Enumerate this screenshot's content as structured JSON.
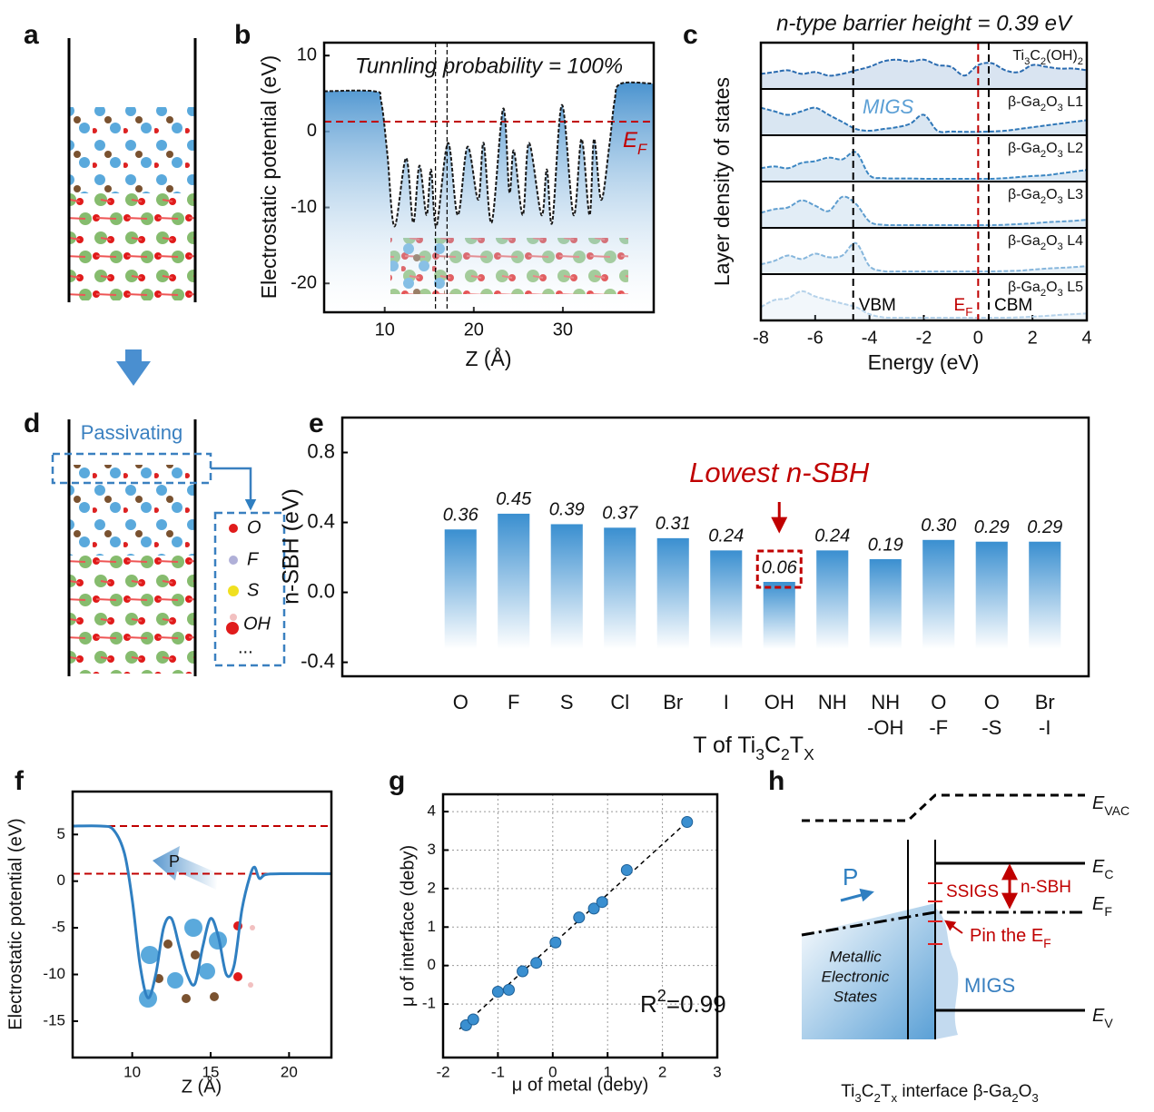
{
  "panel_labels": [
    "a",
    "b",
    "c",
    "d",
    "e",
    "f",
    "g",
    "h"
  ],
  "panel_d": {
    "passivating": "Passivating",
    "legend": [
      "O",
      "F",
      "S",
      "OH",
      "..."
    ]
  },
  "panel_h": {
    "e_vac": [
      "E",
      "VAC"
    ],
    "e_c": [
      "E",
      "C"
    ],
    "e_f": [
      "E",
      "F"
    ],
    "e_v": [
      "E",
      "V"
    ],
    "p": "P",
    "ssigs": "SSIGS",
    "nsbh": "n-SBH",
    "pin": [
      "Pin the E",
      "F"
    ],
    "metallic": [
      "Metallic",
      "Electronic",
      "States"
    ],
    "migs": "MIGS",
    "caption": [
      "Ti",
      "3",
      "C",
      "2",
      "T",
      "x",
      " interface β-Ga",
      "2",
      "O",
      "3"
    ]
  },
  "chart_data": [
    {
      "type": "line",
      "annotation": "Tunnling probability = 100%",
      "xlabel": "Z (Å)",
      "ylabel": "Electrostatic potential (eV)",
      "x": [
        3.2,
        8.8,
        9.6,
        10.3,
        11.1,
        12.4,
        13.2,
        13.9,
        14.7,
        15.2,
        15.8,
        17.1,
        18.2,
        19.3,
        20.5,
        21.1,
        22.0,
        23.3,
        24.0,
        24.5,
        25.5,
        26.2,
        27.6,
        28.2,
        28.8,
        29.9,
        31.2,
        32.1,
        33.0,
        33.5,
        34.3,
        35.2,
        35.8,
        36.5,
        40.2
      ],
      "values": [
        5.3,
        5.3,
        4,
        -3,
        -12.5,
        -3.5,
        -12,
        -4.5,
        -11,
        -5,
        -12.5,
        -1.5,
        -11,
        -2,
        -9,
        -1.5,
        -12,
        3,
        -8,
        -2.5,
        -11,
        -1.5,
        -11,
        -5,
        -12,
        3.5,
        -11,
        -1,
        -11,
        -1,
        -9,
        -2,
        4,
        6.3,
        6.3
      ],
      "color": "#1a1a1a",
      "line_style": "dashed",
      "fill_area": true,
      "hlines": [
        {
          "value": 1.3,
          "color": "#c00000",
          "label": [
            "E",
            "F"
          ]
        }
      ],
      "vlines": [
        15.7,
        17.0
      ],
      "xlim": [
        3.2,
        40.2
      ],
      "ylim": [
        -23.8,
        11.7
      ],
      "xticks": [
        10,
        20,
        30
      ],
      "yticks": [
        -20,
        -10,
        0,
        10
      ]
    },
    {
      "type": "dos",
      "title": "n-type barrier height = 0.39 eV",
      "annotation": "MIGS",
      "xlabel": "Energy (eV)",
      "ylabel": "Layer density of states",
      "x": [
        -8,
        -7.5,
        -7,
        -6.5,
        -6,
        -5.5,
        -5,
        -4.5,
        -4,
        -3.5,
        -3,
        -2.5,
        -2,
        -1.5,
        -1,
        -0.5,
        0,
        0.5,
        1,
        1.5,
        2,
        2.5,
        3,
        3.5,
        4
      ],
      "series": [
        {
          "name": [
            "Ti",
            "3",
            "C",
            "2",
            "(OH)",
            "2"
          ],
          "color": "#2a6bb0",
          "values": [
            0.35,
            0.4,
            0.45,
            0.35,
            0.4,
            0.3,
            0.35,
            0.45,
            0.55,
            0.7,
            0.75,
            0.7,
            0.75,
            0.6,
            0.55,
            0.3,
            0.6,
            0.65,
            0.45,
            0.4,
            0.6,
            0.55,
            0.5,
            0.5,
            0.45
          ]
        },
        {
          "name": [
            "β-Ga",
            "2",
            "O",
            "3",
            " L1"
          ],
          "color": "#2f77b8",
          "values": [
            0.7,
            0.6,
            0.5,
            0.6,
            0.7,
            0.5,
            0.3,
            0.1,
            0.05,
            0.1,
            0.15,
            0.25,
            0.5,
            0.05,
            0.03,
            0.02,
            0.02,
            0.03,
            0.05,
            0.1,
            0.15,
            0.2,
            0.25,
            0.3,
            0.35
          ]
        },
        {
          "name": [
            "β-Ga",
            "2",
            "O",
            "3",
            " L2"
          ],
          "color": "#3b86c2",
          "values": [
            0.3,
            0.35,
            0.3,
            0.45,
            0.5,
            0.6,
            0.55,
            0.75,
            0.1,
            0.02,
            0.01,
            0.01,
            0,
            0,
            0,
            0,
            0,
            0,
            0.02,
            0.05,
            0.08,
            0.1,
            0.15,
            0.2,
            0.25
          ]
        },
        {
          "name": [
            "β-Ga",
            "2",
            "O",
            "3",
            " L3"
          ],
          "color": "#5e9dcf",
          "values": [
            0.35,
            0.45,
            0.5,
            0.7,
            0.55,
            0.4,
            0.8,
            0.6,
            0.1,
            0.01,
            0,
            0,
            0,
            0,
            0,
            0,
            0,
            0,
            0.01,
            0.03,
            0.05,
            0.08,
            0.1,
            0.12,
            0.15
          ]
        },
        {
          "name": [
            "β-Ga",
            "2",
            "O",
            "3",
            " L4"
          ],
          "color": "#86b6dc",
          "values": [
            0.2,
            0.3,
            0.45,
            0.35,
            0.5,
            0.4,
            0.45,
            0.8,
            0.15,
            0.01,
            0,
            0,
            0,
            0,
            0,
            0,
            0,
            0,
            0.01,
            0.02,
            0.05,
            0.08,
            0.1,
            0.12,
            0.15
          ]
        },
        {
          "name": [
            "β-Ga",
            "2",
            "O",
            "3",
            " L5"
          ],
          "color": "#b5d2ea",
          "values": [
            0.3,
            0.5,
            0.55,
            0.75,
            0.6,
            0.5,
            0.4,
            0.3,
            0.1,
            0.01,
            0,
            0,
            0,
            0,
            0,
            0,
            0,
            0,
            0,
            0.01,
            0.03,
            0.05,
            0.08,
            0.1,
            0.12
          ]
        }
      ],
      "vlines": [
        {
          "value": -4.6,
          "color": "#000000",
          "label": "VBM"
        },
        {
          "value": 0,
          "color": "#c00000",
          "label": [
            "E",
            "F"
          ]
        },
        {
          "value": 0.39,
          "color": "#000000",
          "label": "CBM"
        }
      ],
      "xlim": [
        -8,
        4
      ],
      "ylim": [
        0,
        1
      ],
      "xticks": [
        -8,
        -6,
        -4,
        -2,
        0,
        2,
        4
      ]
    },
    {
      "type": "bar",
      "annotation": "Lowest n-SBH",
      "ylabel": "n-SBH (eV)",
      "xlabel": [
        "T of Ti",
        "3",
        "C",
        "2",
        "T",
        "X"
      ],
      "categories": [
        [
          "O"
        ],
        [
          "F"
        ],
        [
          "S"
        ],
        [
          "Cl"
        ],
        [
          "Br"
        ],
        [
          "I"
        ],
        [
          "OH"
        ],
        [
          "NH"
        ],
        [
          "NH",
          "-OH"
        ],
        [
          "O",
          "-F"
        ],
        [
          "O",
          "-S"
        ],
        [
          "Br",
          "-I"
        ]
      ],
      "values": [
        0.36,
        0.45,
        0.39,
        0.37,
        0.31,
        0.24,
        0.06,
        0.24,
        0.19,
        0.3,
        0.29,
        0.29
      ],
      "value_labels": [
        "0.36",
        "0.45",
        "0.39",
        "0.37",
        "0.31",
        "0.24",
        "0.06",
        "0.24",
        "0.19",
        "0.30",
        "0.29",
        "0.29"
      ],
      "color": "#3a8fd0",
      "ylim": [
        -0.48,
        1.0
      ],
      "yticks": [
        -0.4,
        {
          "value": 0,
          "label": "0.0"
        },
        0.4,
        0.8
      ]
    },
    {
      "type": "line",
      "annotation": "P",
      "xlabel": "Z (Å)",
      "ylabel": "Electrostatic potential (eV)",
      "x": [
        6.2,
        8,
        8.8,
        9.5,
        10,
        10.5,
        11,
        11.5,
        12,
        12.5,
        13,
        13.5,
        14,
        14.5,
        15,
        15.5,
        16,
        16.5,
        17,
        17.5,
        17.8,
        18.1,
        18.5,
        19.5,
        22.7
      ],
      "values": [
        5.9,
        5.9,
        5.5,
        3,
        -2,
        -9,
        -12.5,
        -10,
        -5,
        -4,
        -7,
        -10,
        -11,
        -7,
        -4,
        -6,
        -10,
        -9,
        -3,
        0.5,
        1.5,
        0.3,
        0.7,
        0.8,
        0.8
      ],
      "color": "#2f7fc1",
      "line_style": "solid",
      "fill_area": false,
      "hlines": [
        {
          "value": 5.9,
          "color": "#c00000"
        },
        {
          "value": 0.8,
          "color": "#c00000"
        }
      ],
      "xlim": [
        6.2,
        22.7
      ],
      "ylim": [
        -18.9,
        9.6
      ],
      "xticks": [
        10,
        15,
        20
      ],
      "yticks": [
        -15,
        -10,
        -5,
        0,
        5
      ]
    },
    {
      "type": "scatter",
      "annotation": [
        "R",
        "2",
        "=0.99"
      ],
      "xlabel": "μ of metal (deby)",
      "ylabel": "μ of interface (deby)",
      "x": [
        -1.58,
        -1.45,
        -1.0,
        -0.8,
        -0.55,
        -0.3,
        0.05,
        0.48,
        0.75,
        0.9,
        1.35,
        2.45
      ],
      "values": [
        -1.55,
        -1.4,
        -0.68,
        -0.63,
        -0.15,
        0.07,
        0.6,
        1.25,
        1.48,
        1.65,
        2.48,
        3.73
      ],
      "fit": {
        "x": [
          -1.7,
          2.5
        ],
        "y": [
          -1.65,
          3.8
        ]
      },
      "color": "#3a8fd0",
      "grid": true,
      "xlim": [
        -2,
        3
      ],
      "ylim": [
        -2.39,
        4.45
      ],
      "xticks": [
        -2,
        -1,
        0,
        1,
        2,
        3
      ],
      "yticks": [
        -1,
        0,
        1,
        2,
        3,
        4
      ]
    }
  ]
}
